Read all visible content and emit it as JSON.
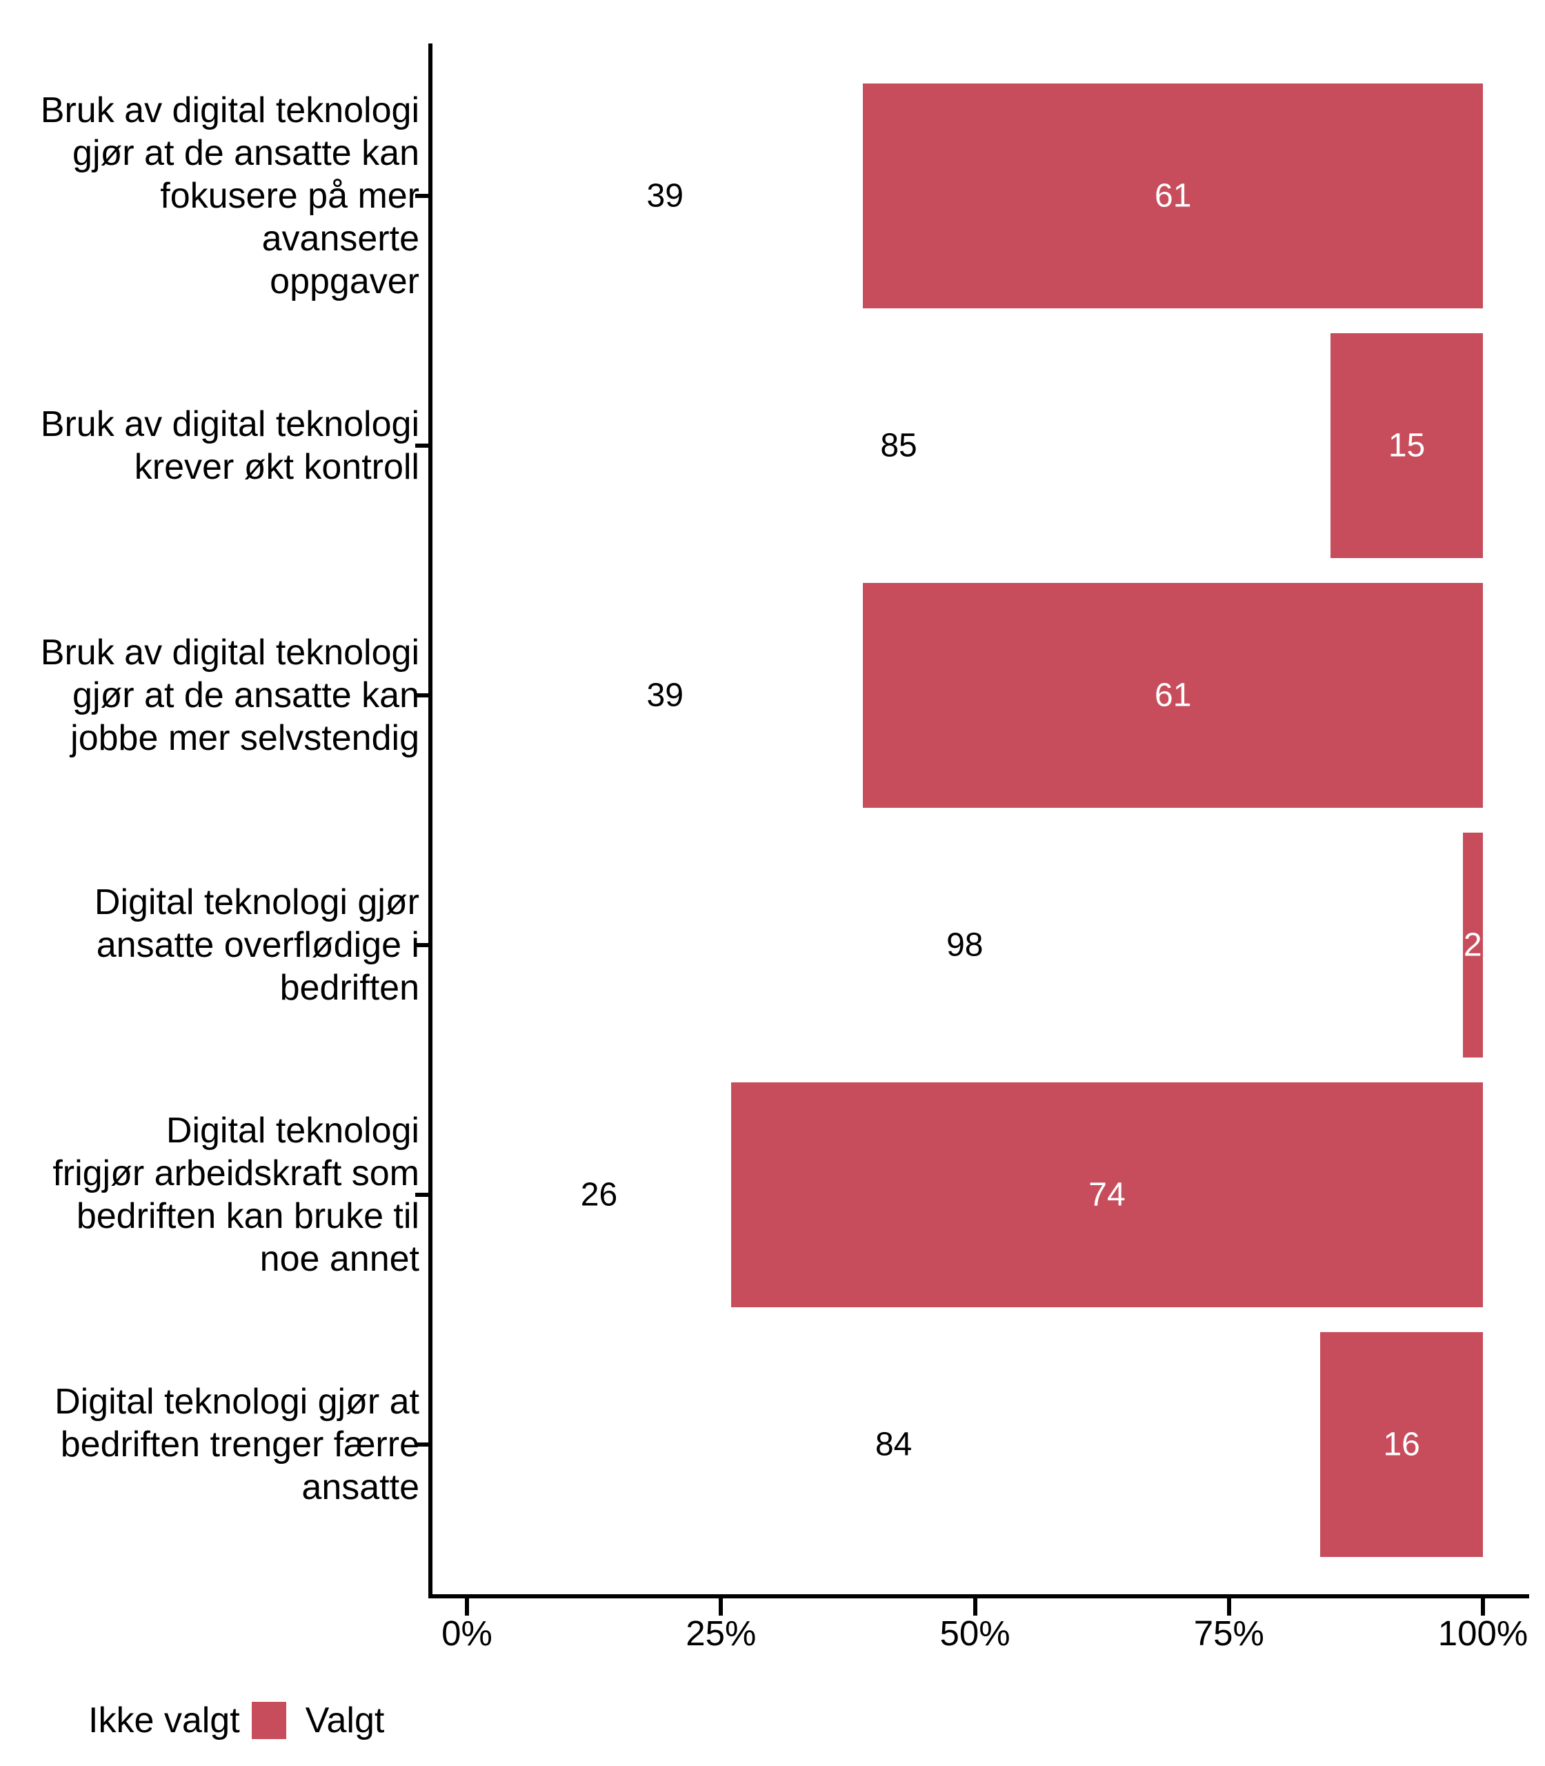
{
  "chart_data": {
    "type": "bar",
    "orientation": "horizontal",
    "stacked": true,
    "values_unit": "percent",
    "title": "",
    "xlabel": "",
    "ylabel": "",
    "grid": false,
    "xlim": [
      0,
      100
    ],
    "categories": [
      "Bruk av digital teknologi\ngjør at de ansatte kan\nfokusere på mer avanserte\noppgaver",
      "Bruk av digital teknologi\nkrever økt kontroll",
      "Bruk av digital teknologi\ngjør at de ansatte kan\njobbe mer selvstendig",
      "Digital teknologi gjør\nansatte overflødige i\nbedriften",
      "Digital teknologi\nfrigjør arbeidskraft som\nbedriften kan bruke til\nnoe annet",
      "Digital teknologi gjør at\nbedriften trenger færre\nansatte"
    ],
    "series": [
      {
        "name": "Ikke valgt",
        "color": "#FFFFFF",
        "values": [
          39,
          85,
          39,
          98,
          26,
          84
        ]
      },
      {
        "name": "Valgt",
        "color": "#C74D5C",
        "values": [
          61,
          15,
          61,
          2,
          74,
          16
        ]
      }
    ],
    "x_ticks": [
      {
        "label": "0%",
        "value": 0
      },
      {
        "label": "25%",
        "value": 25
      },
      {
        "label": "50%",
        "value": 50
      },
      {
        "label": "75%",
        "value": 75
      },
      {
        "label": "100%",
        "value": 100
      }
    ],
    "legend_position": "bottom-left"
  },
  "legend": {
    "items": [
      {
        "label": "Ikke valgt",
        "color": "#FFFFFF"
      },
      {
        "label": "Valgt",
        "color": "#C74D5C"
      }
    ]
  },
  "colors": {
    "selected": "#C74D5C",
    "not_selected": "#FFFFFF",
    "axis": "#000000",
    "text": "#000000",
    "value_on_bar": "#FFFFFF"
  }
}
